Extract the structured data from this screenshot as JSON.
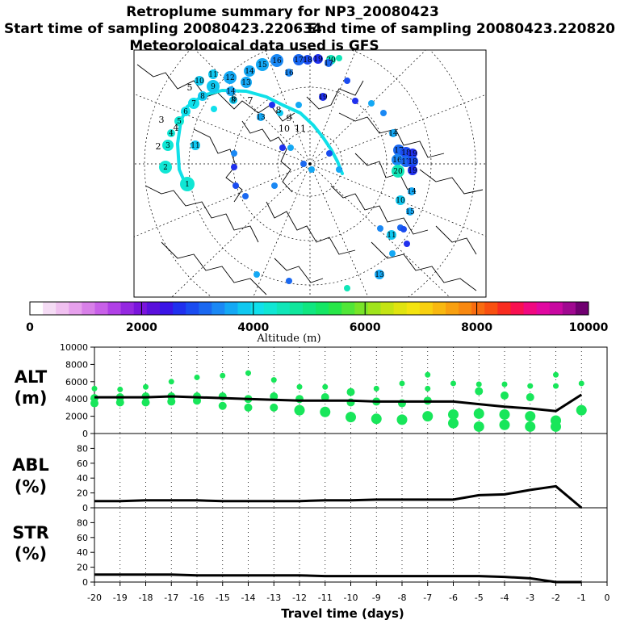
{
  "header": {
    "title": "Retroplume summary for NP3_20080423",
    "start_sampling": "Start time of sampling 20080423.220634",
    "end_sampling": "End time of sampling 20080423.220820",
    "met_data": "Meteorological data used is GFS"
  },
  "colorbar": {
    "title": "Altitude (m)",
    "min": 0,
    "max": 10000,
    "tick_labels": [
      "0",
      "2000",
      "4000",
      "6000",
      "8000",
      "10000"
    ],
    "colors": [
      "#ffffff",
      "#f5dcf5",
      "#f0c0f0",
      "#e6a0ec",
      "#d880e8",
      "#c860e8",
      "#b040e6",
      "#9428e0",
      "#7a14dc",
      "#5a10dc",
      "#3a14e6",
      "#2030ee",
      "#1a4cf0",
      "#1a68f0",
      "#1a88f4",
      "#14a8f4",
      "#10c8f0",
      "#10e0ec",
      "#10e6d4",
      "#10e6b8",
      "#10e69c",
      "#10e680",
      "#14e664",
      "#28e648",
      "#50e638",
      "#78e428",
      "#a0e41c",
      "#c4e414",
      "#e0e410",
      "#f4e410",
      "#f8d010",
      "#f8b810",
      "#f8a010",
      "#f88810",
      "#f86c10",
      "#f85010",
      "#f82c20",
      "#f81050",
      "#f00880",
      "#e008a0",
      "#c808a0",
      "#a00890",
      "#700070"
    ]
  },
  "map": {
    "trajectory_color": "#10e0e8",
    "labels": [
      "1",
      "2",
      "3",
      "4",
      "5",
      "6",
      "7",
      "8",
      "9",
      "10",
      "11",
      "12",
      "13",
      "14",
      "15",
      "16",
      "17",
      "18",
      "19",
      "20"
    ]
  },
  "chart_data": [
    {
      "type": "line",
      "panel": "ALT",
      "label_line1": "ALT",
      "label_line2": "(m)",
      "x": [
        -20,
        -19,
        -18,
        -17,
        -16,
        -15,
        -14,
        -13,
        -12,
        -11,
        -10,
        -9,
        -8,
        -7,
        -6,
        -5,
        -4,
        -3,
        -2,
        -1
      ],
      "y": [
        4200,
        4200,
        4200,
        4300,
        4200,
        4100,
        4000,
        3900,
        3800,
        3800,
        3800,
        3700,
        3700,
        3700,
        3700,
        3400,
        3100,
        2900,
        2600,
        4500
      ],
      "ylim": [
        0,
        10000
      ],
      "ytick_labels": [
        "0",
        "2000",
        "4000",
        "6000",
        "8000",
        "10000"
      ],
      "scatter": {
        "color": "#18e65a",
        "points": [
          {
            "x": -20,
            "y": 5200
          },
          {
            "x": -20,
            "y": 4100
          },
          {
            "x": -20,
            "y": 3500
          },
          {
            "x": -19,
            "y": 5100
          },
          {
            "x": -19,
            "y": 4200
          },
          {
            "x": -19,
            "y": 3600
          },
          {
            "x": -18,
            "y": 5400
          },
          {
            "x": -18,
            "y": 4300
          },
          {
            "x": -18,
            "y": 3600
          },
          {
            "x": -17,
            "y": 6000
          },
          {
            "x": -17,
            "y": 4300
          },
          {
            "x": -17,
            "y": 3700
          },
          {
            "x": -16,
            "y": 6500
          },
          {
            "x": -16,
            "y": 4300
          },
          {
            "x": -16,
            "y": 3800
          },
          {
            "x": -15,
            "y": 6700
          },
          {
            "x": -15,
            "y": 4300
          },
          {
            "x": -15,
            "y": 3200
          },
          {
            "x": -14,
            "y": 7000
          },
          {
            "x": -14,
            "y": 4000
          },
          {
            "x": -14,
            "y": 3000
          },
          {
            "x": -13,
            "y": 6200
          },
          {
            "x": -13,
            "y": 4300
          },
          {
            "x": -13,
            "y": 3000
          },
          {
            "x": -12,
            "y": 5400
          },
          {
            "x": -12,
            "y": 4000
          },
          {
            "x": -12,
            "y": 2700
          },
          {
            "x": -11,
            "y": 5400
          },
          {
            "x": -11,
            "y": 4200
          },
          {
            "x": -11,
            "y": 2500
          },
          {
            "x": -10,
            "y": 4800
          },
          {
            "x": -10,
            "y": 3600
          },
          {
            "x": -10,
            "y": 1900
          },
          {
            "x": -9,
            "y": 5200
          },
          {
            "x": -9,
            "y": 3700
          },
          {
            "x": -9,
            "y": 1700
          },
          {
            "x": -8,
            "y": 5800
          },
          {
            "x": -8,
            "y": 3500
          },
          {
            "x": -8,
            "y": 1600
          },
          {
            "x": -7,
            "y": 6800
          },
          {
            "x": -7,
            "y": 5200
          },
          {
            "x": -7,
            "y": 3800
          },
          {
            "x": -7,
            "y": 2000
          },
          {
            "x": -6,
            "y": 5800
          },
          {
            "x": -6,
            "y": 2200
          },
          {
            "x": -6,
            "y": 1200
          },
          {
            "x": -5,
            "y": 5700
          },
          {
            "x": -5,
            "y": 4900
          },
          {
            "x": -5,
            "y": 2300
          },
          {
            "x": -5,
            "y": 800
          },
          {
            "x": -4,
            "y": 5700
          },
          {
            "x": -4,
            "y": 4400
          },
          {
            "x": -4,
            "y": 2200
          },
          {
            "x": -4,
            "y": 1000
          },
          {
            "x": -3,
            "y": 5500
          },
          {
            "x": -3,
            "y": 4200
          },
          {
            "x": -3,
            "y": 2000
          },
          {
            "x": -3,
            "y": 800
          },
          {
            "x": -2,
            "y": 6800
          },
          {
            "x": -2,
            "y": 5500
          },
          {
            "x": -2,
            "y": 1500
          },
          {
            "x": -2,
            "y": 800
          },
          {
            "x": -1,
            "y": 5800
          },
          {
            "x": -1,
            "y": 2700
          }
        ]
      }
    },
    {
      "type": "line",
      "panel": "ABL",
      "label_line1": "ABL",
      "label_line2": "(%)",
      "x": [
        -20,
        -19,
        -18,
        -17,
        -16,
        -15,
        -14,
        -13,
        -12,
        -11,
        -10,
        -9,
        -8,
        -7,
        -6,
        -5,
        -4,
        -3,
        -2,
        -1
      ],
      "y": [
        9,
        9,
        10,
        10,
        10,
        9,
        9,
        9,
        9,
        10,
        10,
        11,
        11,
        11,
        11,
        17,
        18,
        24,
        29,
        0
      ],
      "ylim": [
        0,
        100
      ],
      "ytick_labels": [
        "0",
        "20",
        "40",
        "60",
        "80"
      ]
    },
    {
      "type": "line",
      "panel": "STR",
      "label_line1": "STR",
      "label_line2": "(%)",
      "x": [
        -20,
        -19,
        -18,
        -17,
        -16,
        -15,
        -14,
        -13,
        -12,
        -11,
        -10,
        -9,
        -8,
        -7,
        -6,
        -5,
        -4,
        -3,
        -2,
        -1
      ],
      "y": [
        10,
        10,
        10,
        10,
        9,
        9,
        9,
        9,
        9,
        8,
        8,
        8,
        8,
        8,
        8,
        8,
        7,
        5,
        0,
        0
      ],
      "ylim": [
        0,
        100
      ],
      "ytick_labels": [
        "0",
        "20",
        "40",
        "60",
        "80"
      ],
      "xtick_labels": [
        "-20",
        "-19",
        "-18",
        "-17",
        "-16",
        "-15",
        "-14",
        "-13",
        "-12",
        "-11",
        "-10",
        "-9",
        "-8",
        "-7",
        "-6",
        "-5",
        "-4",
        "-3",
        "-2",
        "-1",
        "0"
      ],
      "xlabel": "Travel time (days)"
    }
  ]
}
